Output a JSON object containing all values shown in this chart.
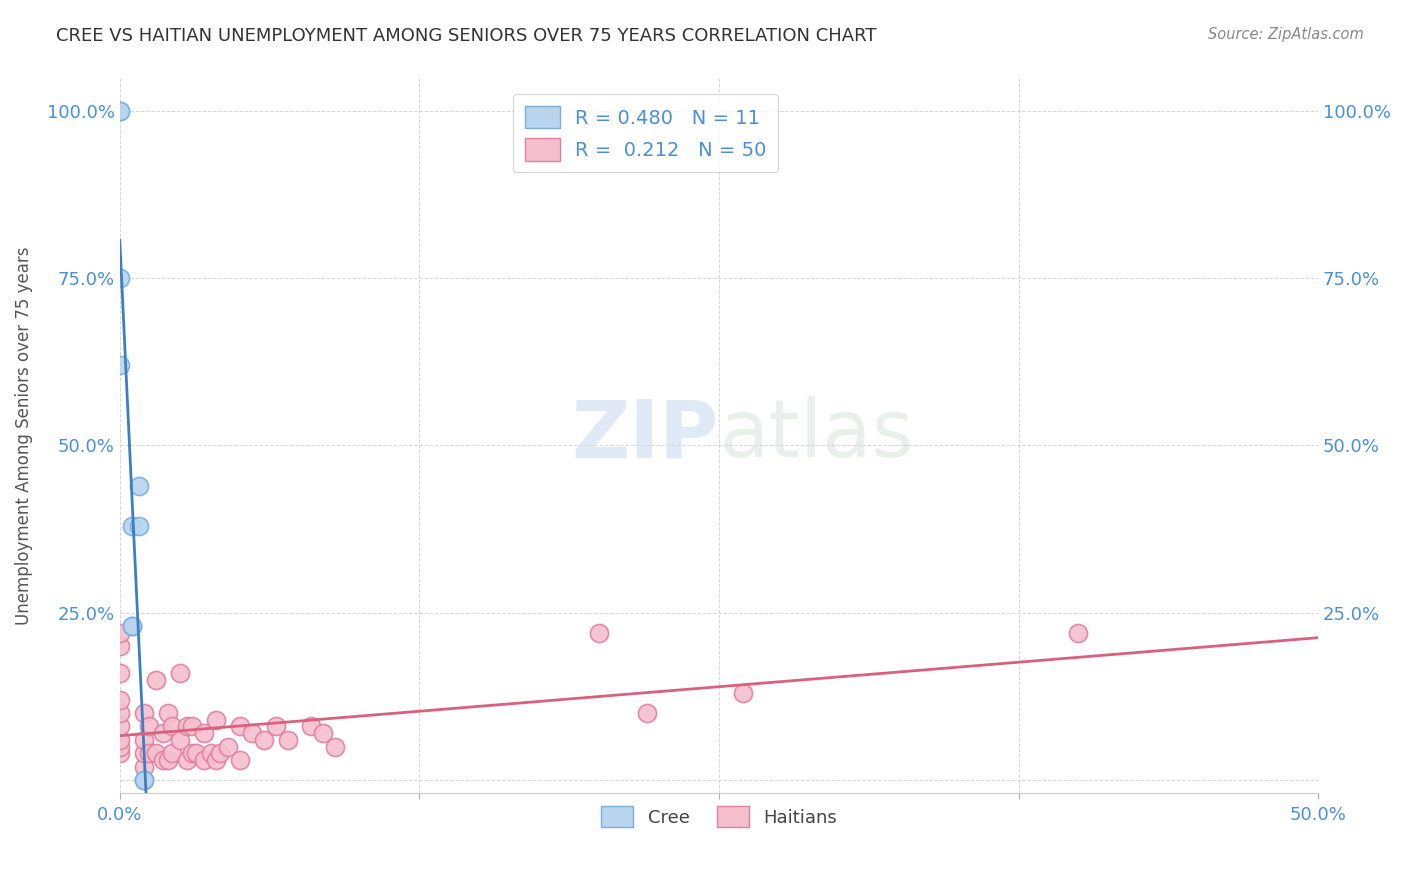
{
  "title": "CREE VS HAITIAN UNEMPLOYMENT AMONG SENIORS OVER 75 YEARS CORRELATION CHART",
  "source": "Source: ZipAtlas.com",
  "ylabel": "Unemployment Among Seniors over 75 years",
  "xlabel": "",
  "xlim": [
    0.0,
    0.5
  ],
  "ylim": [
    -0.02,
    1.05
  ],
  "xticks": [
    0.0,
    0.125,
    0.25,
    0.375,
    0.5
  ],
  "xticklabels": [
    "0.0%",
    "",
    "",
    "",
    "50.0%"
  ],
  "yticks_left": [
    0.0,
    0.25,
    0.5,
    0.75,
    1.0
  ],
  "yticklabels_left": [
    "",
    "25.0%",
    "50.0%",
    "75.0%",
    "100.0%"
  ],
  "yticks_right": [
    0.0,
    0.25,
    0.5,
    0.75,
    1.0
  ],
  "yticklabels_right": [
    "",
    "25.0%",
    "50.0%",
    "75.0%",
    "100.0%"
  ],
  "cree_color": "#b8d4ee",
  "cree_edge_color": "#7aaedd",
  "haitian_color": "#f5bfce",
  "haitian_edge_color": "#e080a0",
  "cree_line_color": "#3a7fc1",
  "haitian_line_color": "#d96080",
  "legend_cree_label": "Cree",
  "legend_haitian_label": "Haitians",
  "R_cree": 0.48,
  "N_cree": 11,
  "R_haitian": 0.212,
  "N_haitian": 50,
  "watermark_zip": "ZIP",
  "watermark_atlas": "atlas",
  "background_color": "#ffffff",
  "grid_color": "#cccccc",
  "title_color": "#333333",
  "axis_tick_color": "#4a90d9",
  "cree_x": [
    0.0,
    0.0,
    0.0,
    0.0,
    0.005,
    0.005,
    0.005,
    0.008,
    0.008,
    0.01,
    0.01
  ],
  "cree_y": [
    1.0,
    1.0,
    0.62,
    0.75,
    0.23,
    0.23,
    0.38,
    0.44,
    0.38,
    0.0,
    0.0
  ],
  "haitian_x": [
    0.0,
    0.0,
    0.0,
    0.0,
    0.0,
    0.0,
    0.0,
    0.0,
    0.0,
    0.01,
    0.01,
    0.01,
    0.01,
    0.012,
    0.012,
    0.015,
    0.015,
    0.018,
    0.018,
    0.02,
    0.02,
    0.022,
    0.022,
    0.025,
    0.025,
    0.028,
    0.028,
    0.03,
    0.03,
    0.032,
    0.035,
    0.035,
    0.038,
    0.04,
    0.04,
    0.042,
    0.045,
    0.05,
    0.05,
    0.055,
    0.06,
    0.065,
    0.07,
    0.08,
    0.085,
    0.09,
    0.2,
    0.22,
    0.26,
    0.4
  ],
  "haitian_y": [
    0.04,
    0.05,
    0.06,
    0.08,
    0.1,
    0.12,
    0.16,
    0.2,
    0.22,
    0.02,
    0.04,
    0.06,
    0.1,
    0.04,
    0.08,
    0.04,
    0.15,
    0.03,
    0.07,
    0.03,
    0.1,
    0.04,
    0.08,
    0.06,
    0.16,
    0.03,
    0.08,
    0.04,
    0.08,
    0.04,
    0.03,
    0.07,
    0.04,
    0.03,
    0.09,
    0.04,
    0.05,
    0.03,
    0.08,
    0.07,
    0.06,
    0.08,
    0.06,
    0.08,
    0.07,
    0.05,
    0.22,
    0.1,
    0.13,
    0.22
  ],
  "marker_size": 170
}
